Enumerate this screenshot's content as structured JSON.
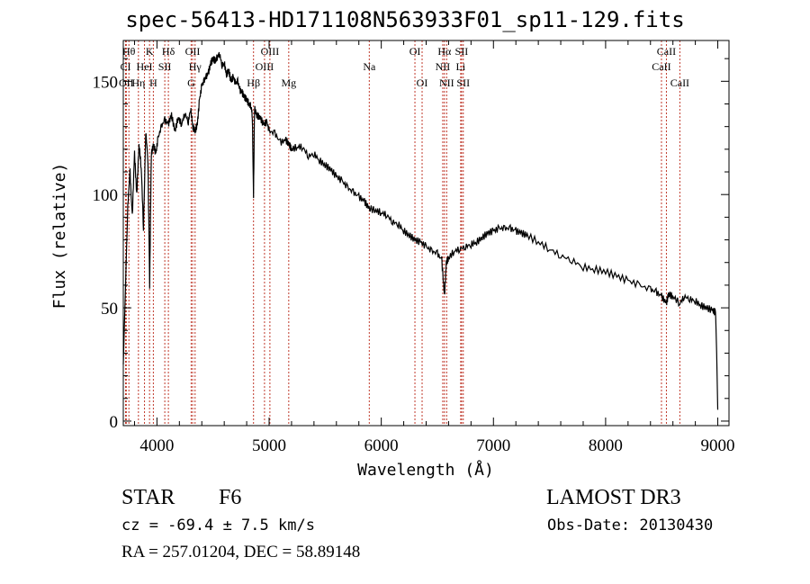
{
  "chart_data": {
    "type": "line",
    "title": "spec-56413-HD171108N563933F01_sp11-129.fits",
    "xlabel": "Wavelength (Å)",
    "ylabel": "Flux (relative)",
    "xlim": [
      3700,
      9100
    ],
    "ylim": [
      -2,
      168
    ],
    "x_ticks": [
      4000,
      5000,
      6000,
      7000,
      8000,
      9000
    ],
    "y_ticks": [
      0,
      50,
      100,
      150
    ],
    "grid": false,
    "series": [
      {
        "name": "spectrum",
        "x": [
          3700,
          3720,
          3740,
          3760,
          3780,
          3800,
          3820,
          3840,
          3860,
          3880,
          3900,
          3920,
          3935,
          3950,
          3970,
          3990,
          4010,
          4040,
          4070,
          4100,
          4130,
          4160,
          4190,
          4220,
          4250,
          4280,
          4300,
          4320,
          4340,
          4360,
          4380,
          4400,
          4420,
          4440,
          4460,
          4480,
          4500,
          4520,
          4540,
          4560,
          4580,
          4600,
          4620,
          4640,
          4660,
          4680,
          4700,
          4720,
          4740,
          4760,
          4780,
          4800,
          4820,
          4840,
          4850,
          4861,
          4870,
          4890,
          4920,
          4950,
          4980,
          5000,
          5050,
          5100,
          5150,
          5180,
          5200,
          5250,
          5300,
          5350,
          5400,
          5450,
          5500,
          5550,
          5600,
          5650,
          5700,
          5750,
          5800,
          5850,
          5890,
          5950,
          6000,
          6050,
          6100,
          6150,
          6200,
          6250,
          6300,
          6350,
          6400,
          6450,
          6500,
          6540,
          6563,
          6580,
          6600,
          6650,
          6700,
          6750,
          6800,
          6850,
          6900,
          6950,
          7000,
          7050,
          7100,
          7150,
          7200,
          7250,
          7300,
          7400,
          7500,
          7600,
          7700,
          7800,
          7900,
          8000,
          8100,
          8200,
          8300,
          8400,
          8450,
          8500,
          8542,
          8560,
          8600,
          8662,
          8700,
          8750,
          8800,
          8850,
          8900,
          8950,
          8980,
          8990,
          9000
        ],
        "values": [
          25,
          60,
          95,
          110,
          90,
          118,
          100,
          122,
          112,
          85,
          128,
          115,
          60,
          118,
          122,
          118,
          125,
          130,
          133,
          131,
          135,
          128,
          134,
          131,
          136,
          132,
          138,
          130,
          128,
          131,
          142,
          148,
          150,
          152,
          154,
          158,
          160,
          159,
          161,
          162,
          157,
          158,
          153,
          155,
          150,
          152,
          149,
          150,
          146,
          145,
          143,
          142,
          140,
          139,
          135,
          100,
          138,
          135,
          134,
          131,
          132,
          128,
          127,
          123,
          124,
          122,
          120,
          121,
          121,
          117,
          118,
          115,
          113,
          111,
          108,
          106,
          103,
          101,
          99,
          97,
          94,
          93,
          92,
          91,
          88,
          87,
          84,
          82,
          80,
          79,
          77,
          75,
          74,
          71,
          55,
          70,
          72,
          75,
          76,
          77,
          78,
          79,
          81,
          83,
          84,
          85,
          85,
          85,
          84,
          83,
          82,
          79,
          76,
          73,
          71,
          68,
          67,
          66,
          64,
          62,
          60,
          58,
          57,
          55,
          52,
          56,
          55,
          52,
          55,
          54,
          53,
          51,
          50,
          49,
          48,
          30,
          5
        ]
      }
    ],
    "lines": [
      {
        "label": "CI",
        "x": 3720,
        "row": 1
      },
      {
        "label": "OII",
        "x": 3727,
        "row": 2
      },
      {
        "label": "Hθ",
        "x": 3750,
        "row": 0
      },
      {
        "label": "Hη",
        "x": 3835,
        "row": 2
      },
      {
        "label": "HeI",
        "x": 3889,
        "row": 1
      },
      {
        "label": "K",
        "x": 3934,
        "row": 0
      },
      {
        "label": "H",
        "x": 3968,
        "row": 2
      },
      {
        "label": "SII",
        "x": 4070,
        "row": 1
      },
      {
        "label": "Hδ",
        "x": 4102,
        "row": 0
      },
      {
        "label": "OII",
        "x": 4318,
        "row": 0
      },
      {
        "label": "Hγ",
        "x": 4340,
        "row": 1
      },
      {
        "label": "G",
        "x": 4305,
        "row": 2
      },
      {
        "label": "Hβ",
        "x": 4861,
        "row": 2
      },
      {
        "label": "OIII",
        "x": 4959,
        "row": 1
      },
      {
        "label": "OIII",
        "x": 5007,
        "row": 0
      },
      {
        "label": "Mg",
        "x": 5175,
        "row": 2
      },
      {
        "label": "Na",
        "x": 5893,
        "row": 1
      },
      {
        "label": "OI",
        "x": 6300,
        "row": 0
      },
      {
        "label": "OI",
        "x": 6364,
        "row": 2
      },
      {
        "label": "NII",
        "x": 6548,
        "row": 1
      },
      {
        "label": "Hα",
        "x": 6563,
        "row": 0
      },
      {
        "label": "NII",
        "x": 6583,
        "row": 2
      },
      {
        "label": "Li",
        "x": 6708,
        "row": 1
      },
      {
        "label": "SII",
        "x": 6716,
        "row": 0
      },
      {
        "label": "SII",
        "x": 6731,
        "row": 2
      },
      {
        "label": "CaII",
        "x": 8498,
        "row": 1
      },
      {
        "label": "CaII",
        "x": 8542,
        "row": 0
      },
      {
        "label": "CaII",
        "x": 8662,
        "row": 2
      }
    ]
  },
  "info": {
    "object_type": "STAR",
    "subclass": "F6",
    "survey": "LAMOST DR3",
    "cz": "cz = -69.4 ± 7.5 km/s",
    "obs_date": "Obs-Date: 20130430",
    "coords": "RA = 257.01204, DEC =  58.89148"
  }
}
